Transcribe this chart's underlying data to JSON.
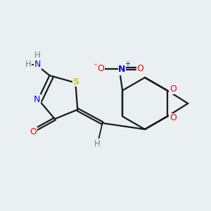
{
  "background_color": "#eaeff2",
  "bond_color": "#1a1a1a",
  "atom_colors": {
    "N": "#0000ff",
    "O": "#ff0000",
    "S": "#cccc00",
    "C": "#1a1a1a",
    "H": "#708090"
  },
  "figsize": [
    3.0,
    3.0
  ],
  "dpi": 100,
  "xlim": [
    0,
    10
  ],
  "ylim": [
    0,
    10
  ]
}
